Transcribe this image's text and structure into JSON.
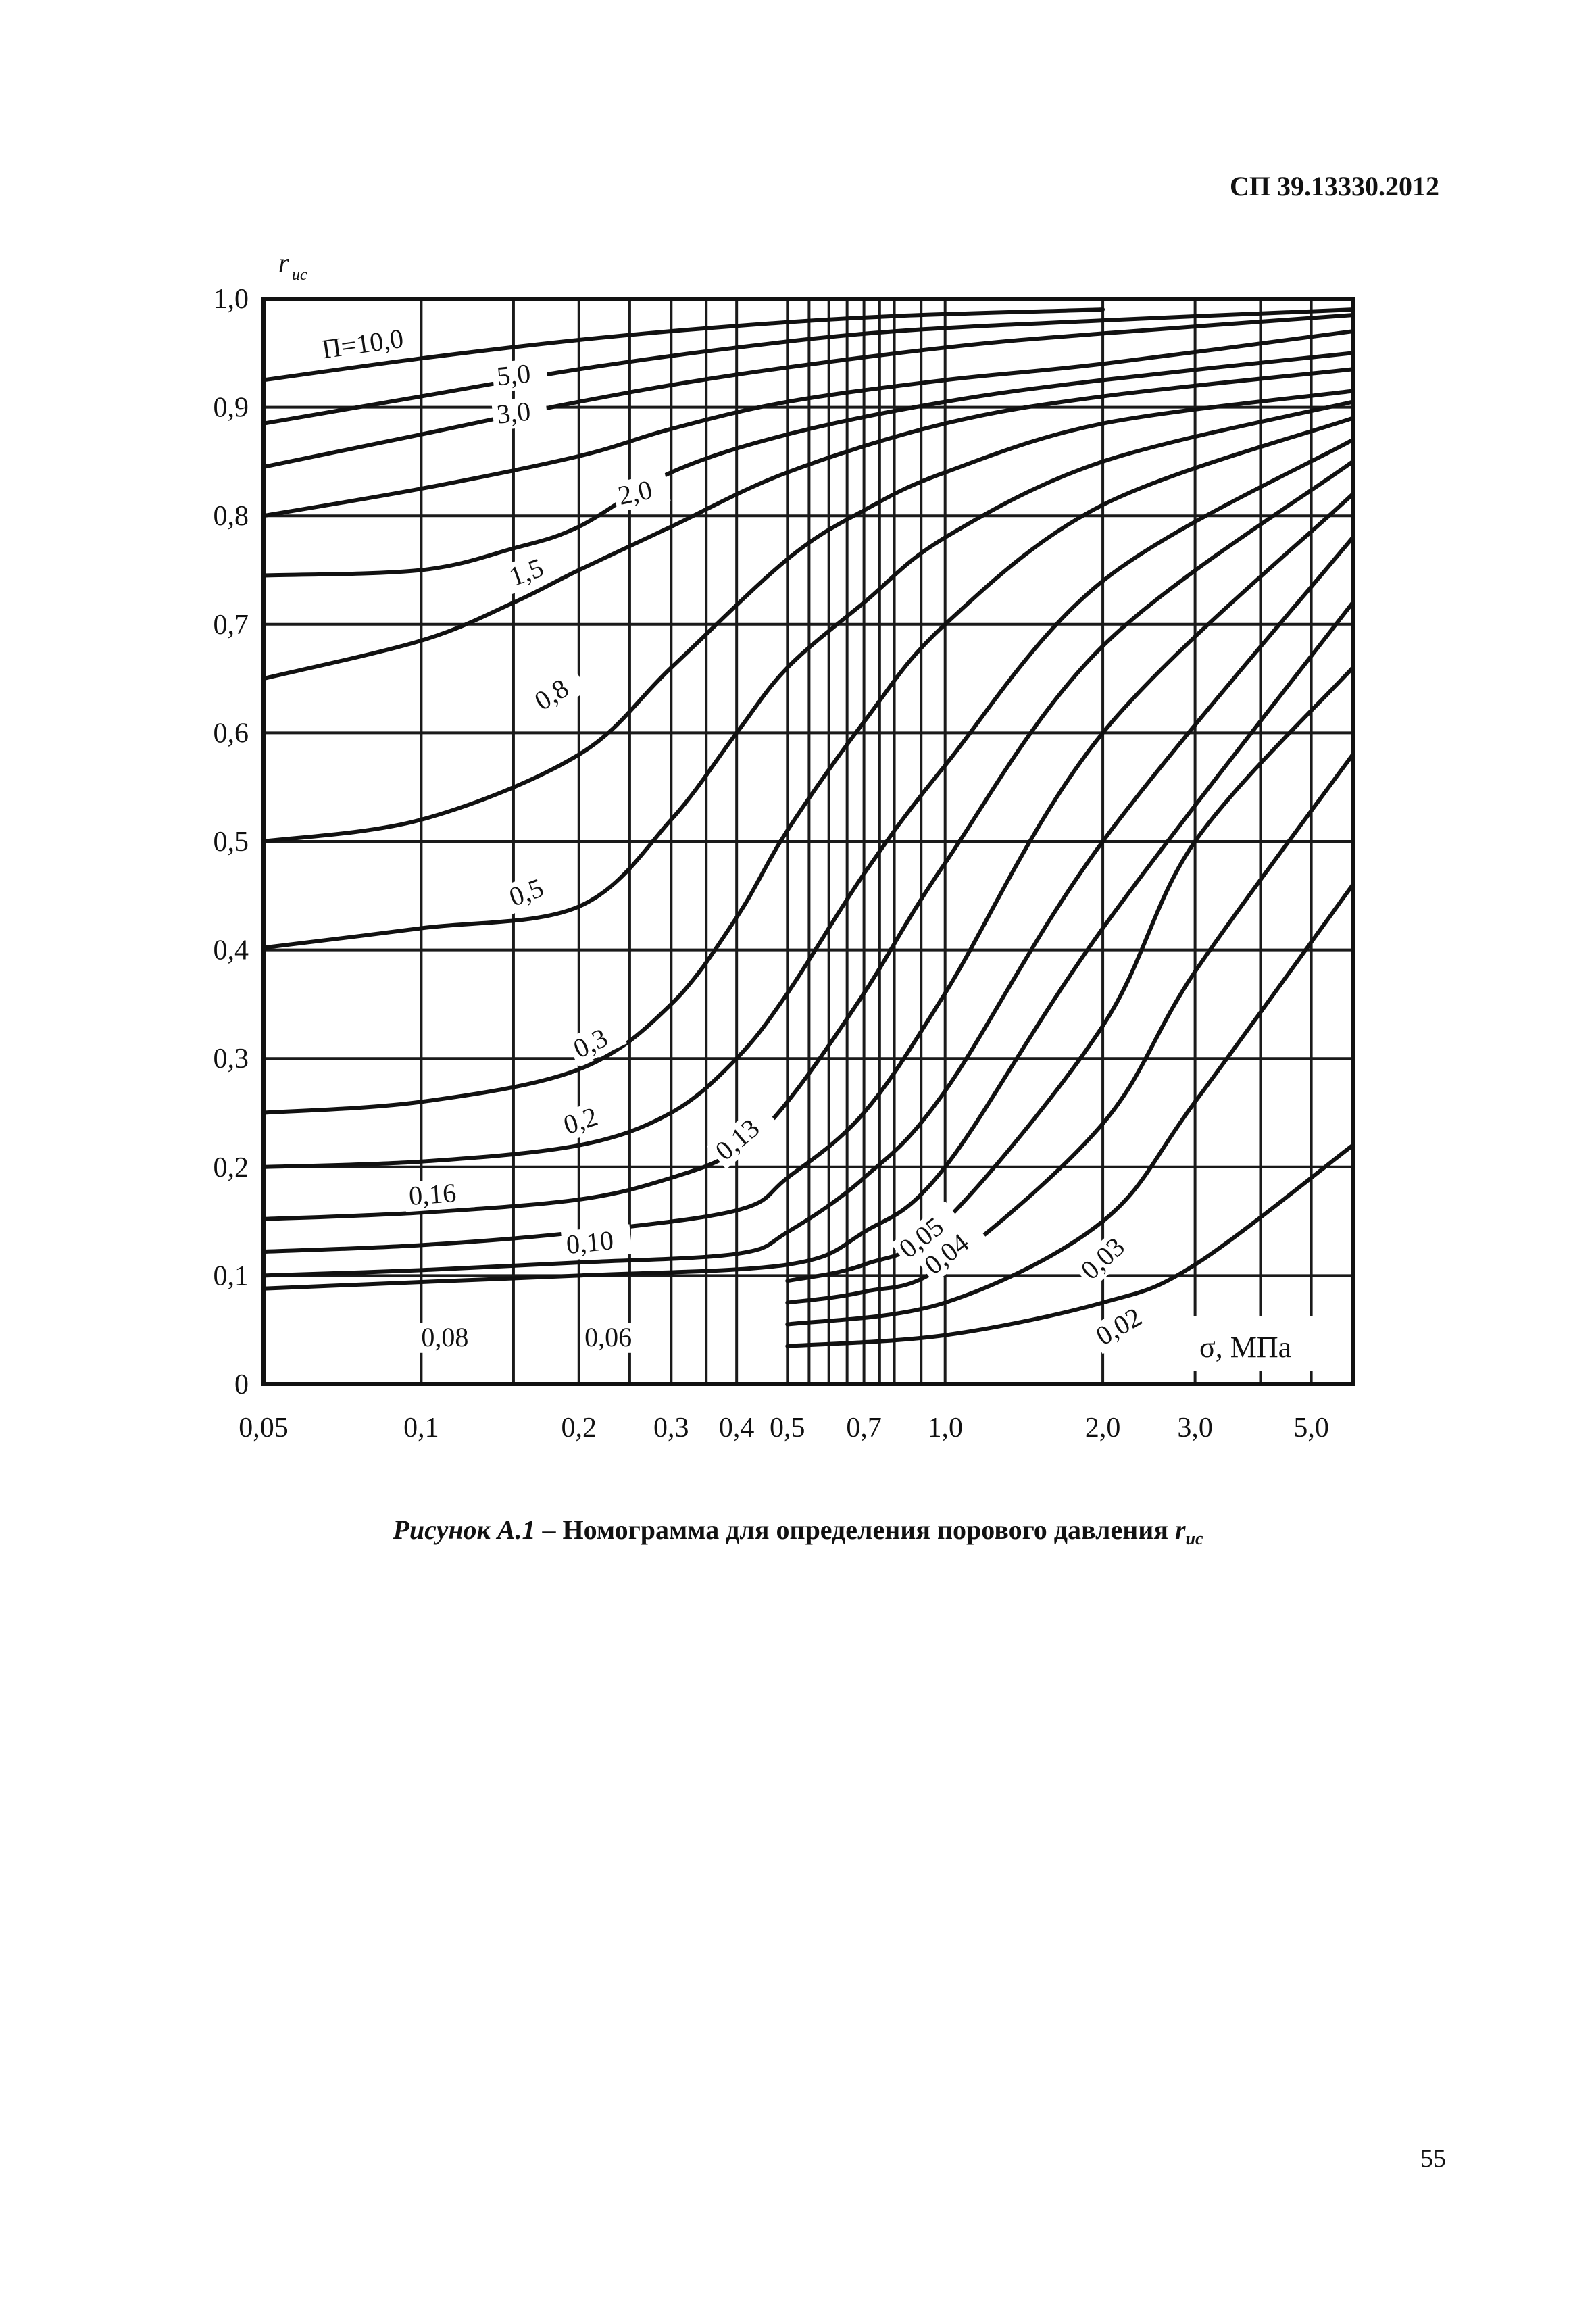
{
  "header": {
    "doc_code": "СП 39.13330.2012"
  },
  "chart_data": {
    "type": "line",
    "y_axis_symbol": "r",
    "y_axis_subscript": "uc",
    "x_axis_label": "σ, МПа",
    "x_scale": "log",
    "xlim": [
      0.05,
      6.0
    ],
    "ylim": [
      0,
      1.0
    ],
    "x_ticks": [
      {
        "value": 0.05,
        "label": "0,05"
      },
      {
        "value": 0.1,
        "label": "0,1"
      },
      {
        "value": 0.2,
        "label": "0,2"
      },
      {
        "value": 0.3,
        "label": "0,3"
      },
      {
        "value": 0.4,
        "label": "0,4"
      },
      {
        "value": 0.5,
        "label": "0,5"
      },
      {
        "value": 0.7,
        "label": "0,7"
      },
      {
        "value": 1.0,
        "label": "1,0"
      },
      {
        "value": 2.0,
        "label": "2,0"
      },
      {
        "value": 3.0,
        "label": "3,0"
      },
      {
        "value": 5.0,
        "label": "5,0"
      }
    ],
    "y_ticks": [
      {
        "value": 0,
        "label": "0"
      },
      {
        "value": 0.1,
        "label": "0,1"
      },
      {
        "value": 0.2,
        "label": "0,2"
      },
      {
        "value": 0.3,
        "label": "0,3"
      },
      {
        "value": 0.4,
        "label": "0,4"
      },
      {
        "value": 0.5,
        "label": "0,5"
      },
      {
        "value": 0.6,
        "label": "0,6"
      },
      {
        "value": 0.7,
        "label": "0,7"
      },
      {
        "value": 0.8,
        "label": "0,8"
      },
      {
        "value": 0.9,
        "label": "0,9"
      },
      {
        "value": 1.0,
        "label": "1,0"
      }
    ],
    "x_gridlines": [
      0.05,
      0.1,
      0.15,
      0.2,
      0.25,
      0.3,
      0.35,
      0.4,
      0.5,
      0.55,
      0.6,
      0.65,
      0.7,
      0.75,
      0.8,
      0.9,
      1.0,
      2.0,
      3.0,
      4.0,
      5.0
    ],
    "y_gridlines": [
      0.1,
      0.2,
      0.3,
      0.4,
      0.5,
      0.6,
      0.7,
      0.8,
      0.9
    ],
    "grid": true,
    "curves": [
      {
        "label": "П=10,0",
        "label_at": [
          0.065,
          0.945
        ],
        "label_angle": -8,
        "points": [
          [
            0.05,
            0.925
          ],
          [
            0.1,
            0.945
          ],
          [
            0.2,
            0.962
          ],
          [
            0.4,
            0.975
          ],
          [
            0.8,
            0.984
          ],
          [
            2.0,
            0.99
          ]
        ]
      },
      {
        "label": "5,0",
        "label_at": [
          0.14,
          0.92
        ],
        "label_angle": -6,
        "points": [
          [
            0.05,
            0.885
          ],
          [
            0.1,
            0.91
          ],
          [
            0.2,
            0.935
          ],
          [
            0.4,
            0.955
          ],
          [
            0.8,
            0.97
          ],
          [
            2.0,
            0.98
          ],
          [
            6.0,
            0.99
          ]
        ]
      },
      {
        "label": "3,0",
        "label_at": [
          0.14,
          0.885
        ],
        "label_angle": -6,
        "points": [
          [
            0.05,
            0.845
          ],
          [
            0.1,
            0.875
          ],
          [
            0.2,
            0.905
          ],
          [
            0.4,
            0.93
          ],
          [
            1.0,
            0.955
          ],
          [
            2.0,
            0.968
          ],
          [
            6.0,
            0.985
          ]
        ]
      },
      {
        "label": "2,0",
        "label_at": [
          0.24,
          0.81
        ],
        "label_angle": -12,
        "points": [
          [
            0.05,
            0.8
          ],
          [
            0.1,
            0.825
          ],
          [
            0.2,
            0.855
          ],
          [
            0.3,
            0.88
          ],
          [
            0.5,
            0.905
          ],
          [
            1.0,
            0.925
          ],
          [
            2.0,
            0.94
          ],
          [
            6.0,
            0.97
          ]
        ]
      },
      {
        "label": "1,5",
        "label_at": [
          0.15,
          0.735
        ],
        "label_angle": -20,
        "points": [
          [
            0.05,
            0.745
          ],
          [
            0.1,
            0.75
          ],
          [
            0.15,
            0.77
          ],
          [
            0.2,
            0.79
          ],
          [
            0.3,
            0.84
          ],
          [
            0.5,
            0.875
          ],
          [
            1.0,
            0.905
          ],
          [
            2.0,
            0.925
          ],
          [
            6.0,
            0.95
          ]
        ]
      },
      {
        "label": "0,8",
        "label_at": [
          0.17,
          0.62
        ],
        "label_angle": -32,
        "points": [
          [
            0.05,
            0.65
          ],
          [
            0.1,
            0.685
          ],
          [
            0.15,
            0.72
          ],
          [
            0.2,
            0.75
          ],
          [
            0.3,
            0.79
          ],
          [
            0.5,
            0.84
          ],
          [
            1.0,
            0.885
          ],
          [
            2.0,
            0.91
          ],
          [
            6.0,
            0.935
          ]
        ]
      },
      {
        "label": "0,5",
        "label_at": [
          0.15,
          0.44
        ],
        "label_angle": -20,
        "points": [
          [
            0.05,
            0.5
          ],
          [
            0.1,
            0.52
          ],
          [
            0.2,
            0.58
          ],
          [
            0.3,
            0.66
          ],
          [
            0.5,
            0.76
          ],
          [
            0.7,
            0.805
          ],
          [
            1.0,
            0.84
          ],
          [
            2.0,
            0.885
          ],
          [
            6.0,
            0.915
          ]
        ]
      },
      {
        "label": "0,3",
        "label_at": [
          0.2,
          0.3
        ],
        "label_angle": -25,
        "points": [
          [
            0.05,
            0.402
          ],
          [
            0.1,
            0.42
          ],
          [
            0.2,
            0.44
          ],
          [
            0.3,
            0.52
          ],
          [
            0.4,
            0.6
          ],
          [
            0.5,
            0.66
          ],
          [
            0.7,
            0.72
          ],
          [
            1.0,
            0.78
          ],
          [
            2.0,
            0.85
          ],
          [
            6.0,
            0.905
          ]
        ]
      },
      {
        "label": "0,2",
        "label_at": [
          0.19,
          0.23
        ],
        "label_angle": -18,
        "points": [
          [
            0.05,
            0.25
          ],
          [
            0.1,
            0.26
          ],
          [
            0.2,
            0.29
          ],
          [
            0.3,
            0.35
          ],
          [
            0.4,
            0.43
          ],
          [
            0.5,
            0.51
          ],
          [
            0.7,
            0.61
          ],
          [
            1.0,
            0.7
          ],
          [
            2.0,
            0.81
          ],
          [
            6.0,
            0.89
          ]
        ]
      },
      {
        "label": "0,16",
        "label_at": [
          0.095,
          0.165
        ],
        "label_angle": -4,
        "points": [
          [
            0.05,
            0.2
          ],
          [
            0.1,
            0.205
          ],
          [
            0.2,
            0.22
          ],
          [
            0.3,
            0.25
          ],
          [
            0.4,
            0.3
          ],
          [
            0.5,
            0.36
          ],
          [
            0.7,
            0.47
          ],
          [
            1.0,
            0.57
          ],
          [
            2.0,
            0.74
          ],
          [
            6.0,
            0.87
          ]
        ]
      },
      {
        "label": "0,13",
        "label_at": [
          0.38,
          0.205
        ],
        "label_angle": -40,
        "points": [
          [
            0.05,
            0.152
          ],
          [
            0.1,
            0.158
          ],
          [
            0.2,
            0.17
          ],
          [
            0.3,
            0.19
          ],
          [
            0.4,
            0.215
          ],
          [
            0.5,
            0.26
          ],
          [
            0.7,
            0.36
          ],
          [
            1.0,
            0.48
          ],
          [
            2.0,
            0.68
          ],
          [
            6.0,
            0.85
          ]
        ]
      },
      {
        "label": "0,10",
        "label_at": [
          0.19,
          0.12
        ],
        "label_angle": -6,
        "points": [
          [
            0.05,
            0.122
          ],
          [
            0.1,
            0.128
          ],
          [
            0.2,
            0.14
          ],
          [
            0.4,
            0.16
          ],
          [
            0.5,
            0.19
          ],
          [
            0.7,
            0.25
          ],
          [
            1.0,
            0.36
          ],
          [
            2.0,
            0.6
          ],
          [
            6.0,
            0.82
          ]
        ]
      },
      {
        "label": "0,08",
        "label_at": [
          0.1,
          0.035
        ],
        "label_angle": 0,
        "points": [
          [
            0.05,
            0.1
          ],
          [
            0.1,
            0.105
          ],
          [
            0.2,
            0.112
          ],
          [
            0.4,
            0.12
          ],
          [
            0.5,
            0.14
          ],
          [
            0.7,
            0.19
          ],
          [
            1.0,
            0.27
          ],
          [
            2.0,
            0.5
          ],
          [
            6.0,
            0.78
          ]
        ]
      },
      {
        "label": "0,06",
        "label_at": [
          0.205,
          0.035
        ],
        "label_angle": 0,
        "points": [
          [
            0.05,
            0.088
          ],
          [
            0.1,
            0.094
          ],
          [
            0.2,
            0.1
          ],
          [
            0.5,
            0.11
          ],
          [
            0.7,
            0.14
          ],
          [
            1.0,
            0.2
          ],
          [
            2.0,
            0.42
          ],
          [
            6.0,
            0.72
          ]
        ]
      },
      {
        "label": "0,05",
        "label_at": [
          0.85,
          0.115
        ],
        "label_angle": -38,
        "points": [
          [
            0.5,
            0.095
          ],
          [
            0.7,
            0.11
          ],
          [
            1.0,
            0.15
          ],
          [
            2.0,
            0.33
          ],
          [
            3.0,
            0.5
          ],
          [
            6.0,
            0.66
          ]
        ]
      },
      {
        "label": "0,04",
        "label_at": [
          0.95,
          0.1
        ],
        "label_angle": -38,
        "points": [
          [
            0.5,
            0.075
          ],
          [
            0.7,
            0.085
          ],
          [
            1.0,
            0.11
          ],
          [
            2.0,
            0.24
          ],
          [
            3.0,
            0.38
          ],
          [
            6.0,
            0.58
          ]
        ]
      },
      {
        "label": "0,03",
        "label_at": [
          1.9,
          0.095
        ],
        "label_angle": -42,
        "points": [
          [
            0.5,
            0.055
          ],
          [
            1.0,
            0.075
          ],
          [
            2.0,
            0.15
          ],
          [
            3.0,
            0.26
          ],
          [
            6.0,
            0.46
          ]
        ]
      },
      {
        "label": "0,02",
        "label_at": [
          2.0,
          0.035
        ],
        "label_angle": -30,
        "points": [
          [
            0.5,
            0.035
          ],
          [
            1.0,
            0.045
          ],
          [
            2.0,
            0.075
          ],
          [
            3.0,
            0.11
          ],
          [
            6.0,
            0.22
          ]
        ]
      }
    ]
  },
  "caption": {
    "lead": "Рисунок А.1",
    "dash": " – ",
    "text": "Номограмма для определения порового давления ",
    "symbol": "r",
    "subscript": "uc"
  },
  "footer": {
    "page_number": "55"
  }
}
